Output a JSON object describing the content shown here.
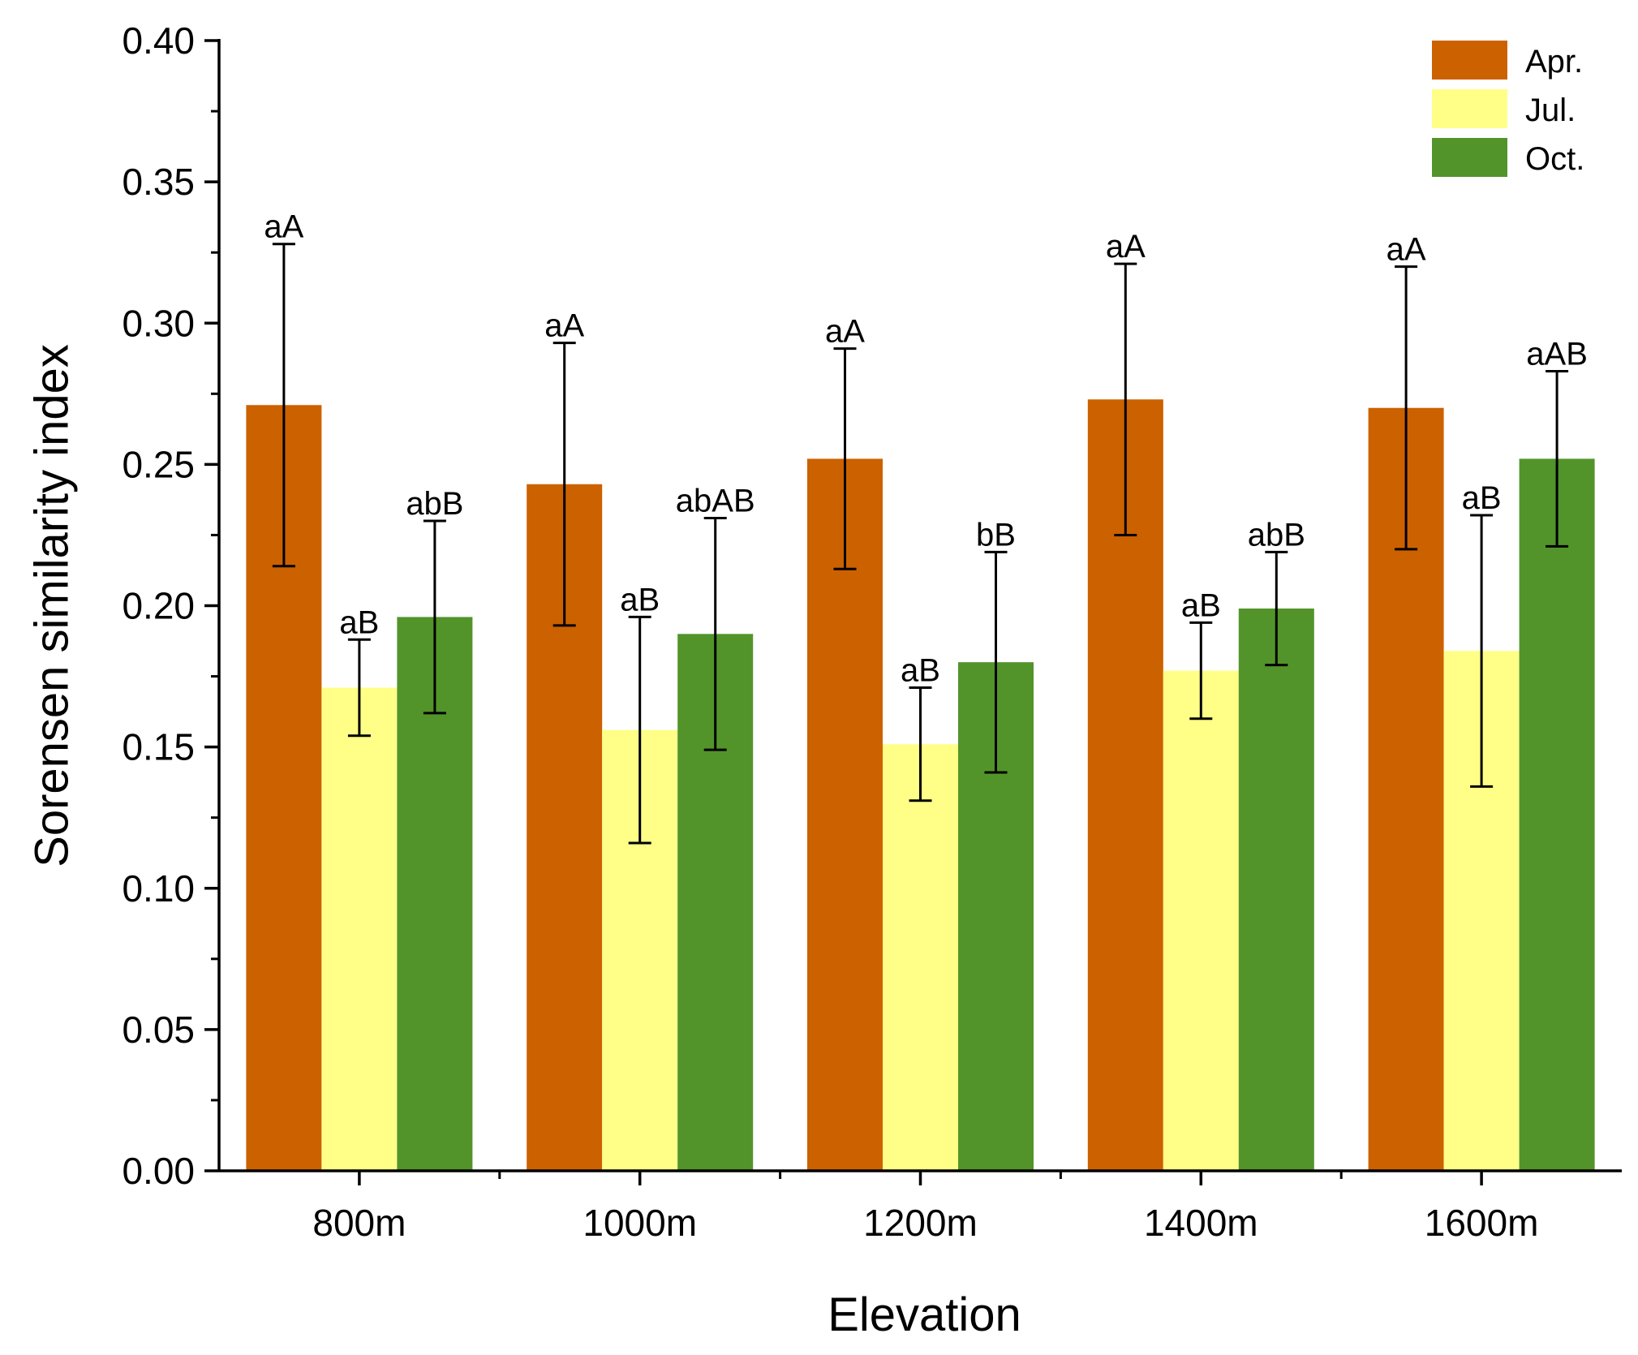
{
  "chart_data": {
    "type": "bar",
    "title": "",
    "xlabel": "Elevation",
    "ylabel": "Sorensen similarity index",
    "ylim": [
      0,
      0.4
    ],
    "yticks": [
      {
        "value": 0.0,
        "label": "0.00"
      },
      {
        "value": 0.05,
        "label": "0.05"
      },
      {
        "value": 0.1,
        "label": "0.10"
      },
      {
        "value": 0.15,
        "label": "0.15"
      },
      {
        "value": 0.2,
        "label": "0.20"
      },
      {
        "value": 0.25,
        "label": "0.25"
      },
      {
        "value": 0.3,
        "label": "0.30"
      },
      {
        "value": 0.35,
        "label": "0.35"
      },
      {
        "value": 0.4,
        "label": "0.40"
      }
    ],
    "categories": [
      "800m",
      "1000m",
      "1200m",
      "1400m",
      "1600m"
    ],
    "legend_position": "top-right",
    "series": [
      {
        "name": "Apr.",
        "color": "#CC6100",
        "values": [
          0.271,
          0.243,
          0.252,
          0.273,
          0.27
        ],
        "errors": [
          0.057,
          0.05,
          0.039,
          0.048,
          0.05
        ],
        "labels": [
          "aA",
          "aA",
          "aA",
          "aA",
          "aA"
        ]
      },
      {
        "name": "Jul.",
        "color": "#FFFF88",
        "values": [
          0.171,
          0.156,
          0.151,
          0.177,
          0.184
        ],
        "errors": [
          0.017,
          0.04,
          0.02,
          0.017,
          0.048
        ],
        "labels": [
          "aB",
          "aB",
          "aB",
          "aB",
          "aB"
        ]
      },
      {
        "name": "Oct.",
        "color": "#52942A",
        "values": [
          0.196,
          0.19,
          0.18,
          0.199,
          0.252
        ],
        "errors": [
          0.034,
          0.041,
          0.039,
          0.02,
          0.031
        ],
        "labels": [
          "abB",
          "abAB",
          "bB",
          "abB",
          "aAB"
        ]
      }
    ]
  }
}
